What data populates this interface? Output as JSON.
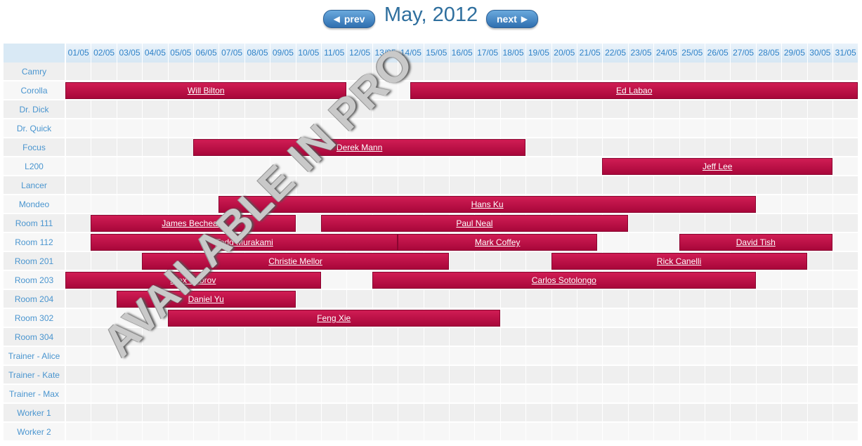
{
  "header": {
    "prev_label": "prev",
    "next_label": "next",
    "title": "May, 2012"
  },
  "days": [
    "01/05",
    "02/05",
    "03/05",
    "04/05",
    "05/05",
    "06/05",
    "07/05",
    "08/05",
    "09/05",
    "10/05",
    "11/05",
    "12/05",
    "13/05",
    "14/05",
    "15/05",
    "16/05",
    "17/05",
    "18/05",
    "19/05",
    "20/05",
    "21/05",
    "22/05",
    "23/05",
    "24/05",
    "25/05",
    "26/05",
    "27/05",
    "28/05",
    "29/05",
    "30/05",
    "31/05"
  ],
  "rows": [
    "Camry",
    "Corolla",
    "Dr. Dick",
    "Dr. Quick",
    "Focus",
    "L200",
    "Lancer",
    "Mondeo",
    "Room 111",
    "Room 112",
    "Room 201",
    "Room 203",
    "Room 204",
    "Room 302",
    "Room 304",
    "Trainer - Alice",
    "Trainer - Kate",
    "Trainer - Max",
    "Worker 1",
    "Worker 2"
  ],
  "events": [
    {
      "row": 1,
      "start": 1,
      "end": 11,
      "label": "Will Bilton"
    },
    {
      "row": 1,
      "start": 14.5,
      "end": 31,
      "label": "Ed Labao"
    },
    {
      "row": 4,
      "start": 6,
      "end": 18,
      "label": "Derek Mann"
    },
    {
      "row": 5,
      "start": 22,
      "end": 30,
      "label": "Jeff Lee"
    },
    {
      "row": 7,
      "start": 7,
      "end": 27,
      "label": "Hans Ku"
    },
    {
      "row": 8,
      "start": 2,
      "end": 9,
      "label": "James Bechears"
    },
    {
      "row": 8,
      "start": 11,
      "end": 22,
      "label": "Paul Neal"
    },
    {
      "row": 9,
      "start": 2,
      "end": 13,
      "label": "Todd Murakami"
    },
    {
      "row": 9,
      "start": 14,
      "end": 20.8,
      "label": "Mark Coffey"
    },
    {
      "row": 9,
      "start": 25,
      "end": 30,
      "label": "David Tish"
    },
    {
      "row": 10,
      "start": 4,
      "end": 15,
      "label": "Christie Mellor"
    },
    {
      "row": 10,
      "start": 20,
      "end": 29,
      "label": "Rick Canelli"
    },
    {
      "row": 11,
      "start": 1,
      "end": 10,
      "label": "Alex Bobrov"
    },
    {
      "row": 11,
      "start": 13,
      "end": 27,
      "label": "Carlos Sotolongo"
    },
    {
      "row": 12,
      "start": 3,
      "end": 9,
      "label": "Daniel Yu"
    },
    {
      "row": 13,
      "start": 5,
      "end": 17,
      "label": "Feng Xie"
    }
  ],
  "watermark": "AVAILABLE IN PRO",
  "colors": {
    "event_fill": "#c0114a",
    "header_text": "#2f82c8",
    "title_text": "#2f6f9e",
    "row_label_text": "#4a95cf"
  },
  "icons": {
    "prev": "arrow-left-icon",
    "next": "arrow-right-icon"
  }
}
